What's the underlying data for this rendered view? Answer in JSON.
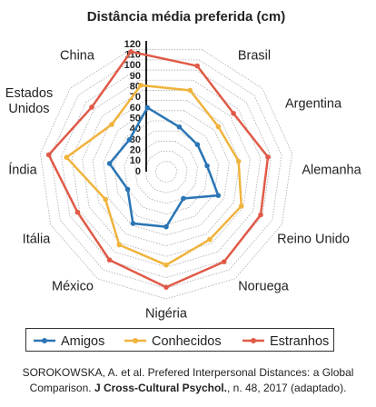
{
  "chart_data": {
    "type": "radar",
    "title": "Distância média preferida (cm)",
    "categories": [
      "Brasil",
      "Argentina",
      "Alemanha",
      "Reino Unido",
      "Noruega",
      "Nigéria",
      "México",
      "Itália",
      "Índia",
      "Estados Unidos",
      "China"
    ],
    "series": [
      {
        "name": "Amigos",
        "color": "#2a75b5",
        "values": [
          44,
          39,
          39,
          54,
          30,
          52,
          58,
          40,
          54,
          46,
          63
        ]
      },
      {
        "name": "Conhecidos",
        "color": "#f0b33c",
        "values": [
          80,
          65,
          69,
          78,
          76,
          88,
          82,
          63,
          95,
          68,
          85
        ]
      },
      {
        "name": "Estranhos",
        "color": "#e05a47",
        "values": [
          104,
          84,
          97,
          98,
          101,
          109,
          99,
          92,
          112,
          93,
          118
        ]
      }
    ],
    "ylim": [
      0,
      120
    ],
    "yticks": [
      0,
      10,
      20,
      30,
      40,
      50,
      60,
      70,
      80,
      90,
      100,
      110,
      120
    ],
    "grid": true
  },
  "source": [
    "SOROKOWSKA, A. et al. Prefered Interpersonal Distances: a Global Comparison.",
    "J Cross-Cultural Psychol.",
    ", n. 48, 2017 (adaptado)."
  ]
}
